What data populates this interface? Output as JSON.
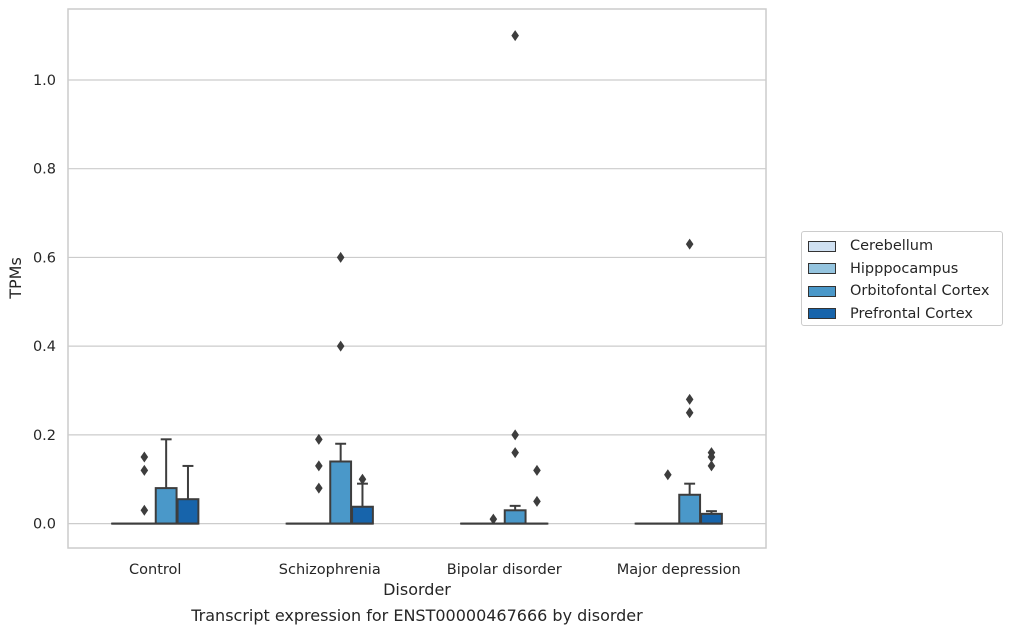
{
  "chart_data": {
    "type": "box",
    "title": "",
    "caption": "Transcript expression for ENST00000467666 by disorder",
    "xlabel": "Disorder",
    "ylabel": "TPMs",
    "ylim": [
      -0.055,
      1.16
    ],
    "yticks": [
      0.0,
      0.2,
      0.4,
      0.6,
      0.8,
      1.0
    ],
    "ytick_labels": [
      "0.0",
      "0.2",
      "0.4",
      "0.6",
      "0.8",
      "1.0"
    ],
    "grid": "horizontal",
    "legend_position": "right",
    "categories": [
      "Control",
      "Schizophrenia",
      "Bipolar disorder",
      "Major depression"
    ],
    "series": [
      {
        "name": "Cerebellum",
        "color": "#d0e1f2",
        "boxes": [
          {
            "q1": 0,
            "median": 0,
            "q3": 0,
            "whisker_low": 0,
            "whisker_high": 0,
            "outliers": []
          },
          {
            "q1": 0,
            "median": 0,
            "q3": 0,
            "whisker_low": 0,
            "whisker_high": 0,
            "outliers": []
          },
          {
            "q1": 0,
            "median": 0,
            "q3": 0,
            "whisker_low": 0,
            "whisker_high": 0,
            "outliers": []
          },
          {
            "q1": 0,
            "median": 0,
            "q3": 0,
            "whisker_low": 0,
            "whisker_high": 0,
            "outliers": []
          }
        ]
      },
      {
        "name": "Hipppocampus",
        "color": "#94c4df",
        "boxes": [
          {
            "q1": 0,
            "median": 0,
            "q3": 0,
            "whisker_low": 0,
            "whisker_high": 0,
            "outliers": [
              0.12,
              0.15,
              0.03
            ]
          },
          {
            "q1": 0,
            "median": 0,
            "q3": 0,
            "whisker_low": 0,
            "whisker_high": 0,
            "outliers": [
              0.19,
              0.13,
              0.08
            ]
          },
          {
            "q1": 0,
            "median": 0,
            "q3": 0,
            "whisker_low": 0,
            "whisker_high": 0,
            "outliers": [
              0.01
            ]
          },
          {
            "q1": 0,
            "median": 0,
            "q3": 0,
            "whisker_low": 0,
            "whisker_high": 0,
            "outliers": [
              0.11
            ]
          }
        ]
      },
      {
        "name": "Orbitofontal Cortex",
        "color": "#4a98c9",
        "boxes": [
          {
            "q1": 0,
            "median": 0,
            "q3": 0.08,
            "whisker_low": 0,
            "whisker_high": 0.19,
            "outliers": []
          },
          {
            "q1": 0,
            "median": 0,
            "q3": 0.14,
            "whisker_low": 0,
            "whisker_high": 0.18,
            "outliers": [
              0.6,
              0.4
            ]
          },
          {
            "q1": 0,
            "median": 0,
            "q3": 0.03,
            "whisker_low": 0,
            "whisker_high": 0.04,
            "outliers": [
              1.1,
              0.2,
              0.16
            ]
          },
          {
            "q1": 0,
            "median": 0,
            "q3": 0.065,
            "whisker_low": 0,
            "whisker_high": 0.09,
            "outliers": [
              0.63,
              0.28,
              0.25
            ]
          }
        ]
      },
      {
        "name": "Prefrontal Cortex",
        "color": "#1764ab",
        "boxes": [
          {
            "q1": 0,
            "median": 0,
            "q3": 0.055,
            "whisker_low": 0,
            "whisker_high": 0.13,
            "outliers": []
          },
          {
            "q1": 0,
            "median": 0,
            "q3": 0.038,
            "whisker_low": 0,
            "whisker_high": 0.09,
            "outliers": [
              0.1
            ]
          },
          {
            "q1": 0,
            "median": 0,
            "q3": 0,
            "whisker_low": 0,
            "whisker_high": 0,
            "outliers": [
              0.12,
              0.05
            ]
          },
          {
            "q1": 0,
            "median": 0,
            "q3": 0.022,
            "whisker_low": 0,
            "whisker_high": 0.028,
            "outliers": [
              0.16,
              0.15,
              0.13
            ]
          }
        ]
      }
    ]
  }
}
